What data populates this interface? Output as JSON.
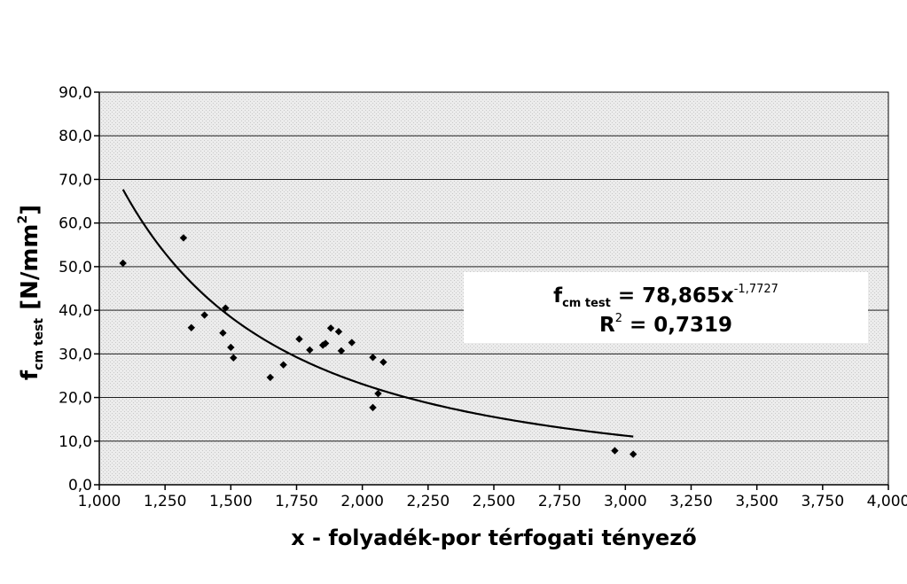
{
  "chart_data": {
    "type": "scatter",
    "title": "",
    "xlabel": "x - folyadék-por térfogati tényező",
    "ylabel": {
      "main": "f",
      "subscript": "cm test",
      "unit_open": " [N/mm",
      "unit_sup": "2",
      "unit_close": "]"
    },
    "xlim": [
      1.0,
      4.0
    ],
    "ylim": [
      0.0,
      90.0
    ],
    "x_ticks": [
      1.0,
      1.25,
      1.5,
      1.75,
      2.0,
      2.25,
      2.5,
      2.75,
      3.0,
      3.25,
      3.5,
      3.75,
      4.0
    ],
    "x_tick_labels": [
      "1,000",
      "1,250",
      "1,500",
      "1,750",
      "2,000",
      "2,250",
      "2,500",
      "2,750",
      "3,000",
      "3,250",
      "3,500",
      "3,750",
      "4,000"
    ],
    "y_ticks": [
      0,
      10,
      20,
      30,
      40,
      50,
      60,
      70,
      80,
      90
    ],
    "y_tick_labels": [
      "0,0",
      "10,0",
      "20,0",
      "30,0",
      "40,0",
      "50,0",
      "60,0",
      "70,0",
      "80,0",
      "90,0"
    ],
    "grid": "horizontal",
    "background": "#e6e6e6",
    "marker_color": "#000000",
    "series": [
      {
        "points": [
          [
            1.09,
            50.8
          ],
          [
            1.32,
            56.6
          ],
          [
            1.35,
            36.0
          ],
          [
            1.4,
            38.9
          ],
          [
            1.47,
            34.8
          ],
          [
            1.48,
            40.5
          ],
          [
            1.5,
            31.5
          ],
          [
            1.51,
            29.1
          ],
          [
            1.65,
            24.6
          ],
          [
            1.7,
            27.5
          ],
          [
            1.76,
            33.4
          ],
          [
            1.8,
            30.9
          ],
          [
            1.85,
            32.0
          ],
          [
            1.86,
            32.4
          ],
          [
            1.88,
            35.9
          ],
          [
            1.91,
            35.1
          ],
          [
            1.92,
            30.7
          ],
          [
            1.96,
            32.6
          ],
          [
            2.04,
            29.2
          ],
          [
            2.04,
            17.7
          ],
          [
            2.06,
            20.9
          ],
          [
            2.08,
            28.1
          ],
          [
            2.96,
            7.8
          ],
          [
            3.03,
            7.0
          ]
        ]
      }
    ],
    "trendline": {
      "type": "power",
      "a": 78.865,
      "b": -1.7727,
      "x_range": [
        1.09,
        3.03
      ],
      "r_squared": 0.7319,
      "label_line1": {
        "lhs": "f",
        "lhs_sub": "cm test",
        "rhs": " = 78,865x",
        "rhs_sup": "-1,7727"
      },
      "label_line2": {
        "lhs": "R",
        "lhs_sup": "2",
        "rhs": " = 0,7319"
      }
    }
  }
}
